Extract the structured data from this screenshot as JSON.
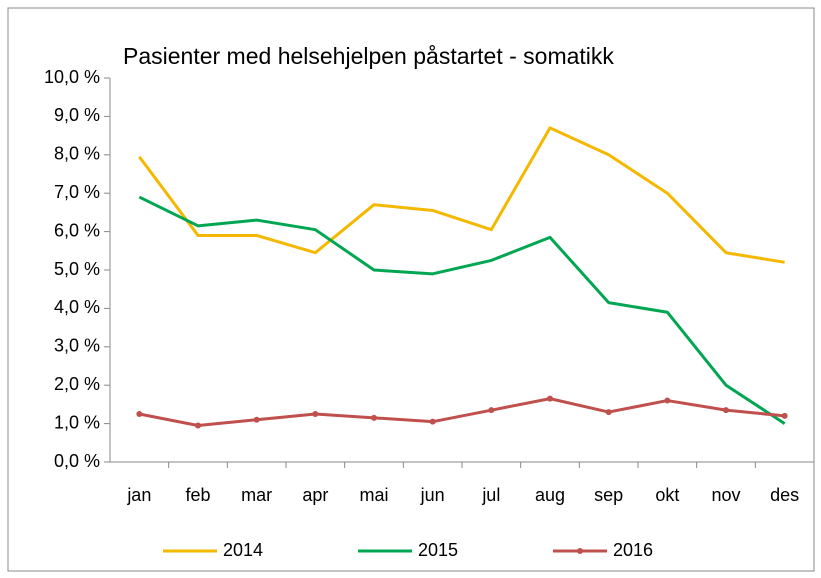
{
  "chart_data": {
    "type": "line",
    "title": "Pasienter med helsehjelpen påstartet - somatikk",
    "categories": [
      "jan",
      "feb",
      "mar",
      "apr",
      "mai",
      "jun",
      "jul",
      "aug",
      "sep",
      "okt",
      "nov",
      "des"
    ],
    "series": [
      {
        "name": "2014",
        "color": "#f5b800",
        "markers": false,
        "values": [
          7.95,
          5.9,
          5.9,
          5.45,
          6.7,
          6.55,
          6.05,
          8.7,
          8.0,
          7.0,
          5.45,
          5.2
        ]
      },
      {
        "name": "2015",
        "color": "#00a651",
        "markers": false,
        "values": [
          6.9,
          6.15,
          6.3,
          6.05,
          5.0,
          4.9,
          5.25,
          5.85,
          4.15,
          3.9,
          2.0,
          1.0
        ]
      },
      {
        "name": "2016",
        "color": "#c0504d",
        "markers": true,
        "values": [
          1.25,
          0.95,
          1.1,
          1.25,
          1.15,
          1.05,
          1.35,
          1.65,
          1.3,
          1.6,
          1.35,
          1.2
        ]
      }
    ],
    "ylim": [
      0,
      10
    ],
    "yticks": [
      {
        "value": 0,
        "label": "0,0 %"
      },
      {
        "value": 1,
        "label": "1,0 %"
      },
      {
        "value": 2,
        "label": "2,0 %"
      },
      {
        "value": 3,
        "label": "3,0 %"
      },
      {
        "value": 4,
        "label": "4,0 %"
      },
      {
        "value": 5,
        "label": "5,0 %"
      },
      {
        "value": 6,
        "label": "6,0 %"
      },
      {
        "value": 7,
        "label": "7,0 %"
      },
      {
        "value": 8,
        "label": "8,0 %"
      },
      {
        "value": 9,
        "label": "9,0 %"
      },
      {
        "value": 10,
        "label": "10,0 %"
      }
    ],
    "grid": false,
    "legend": "bottom"
  }
}
